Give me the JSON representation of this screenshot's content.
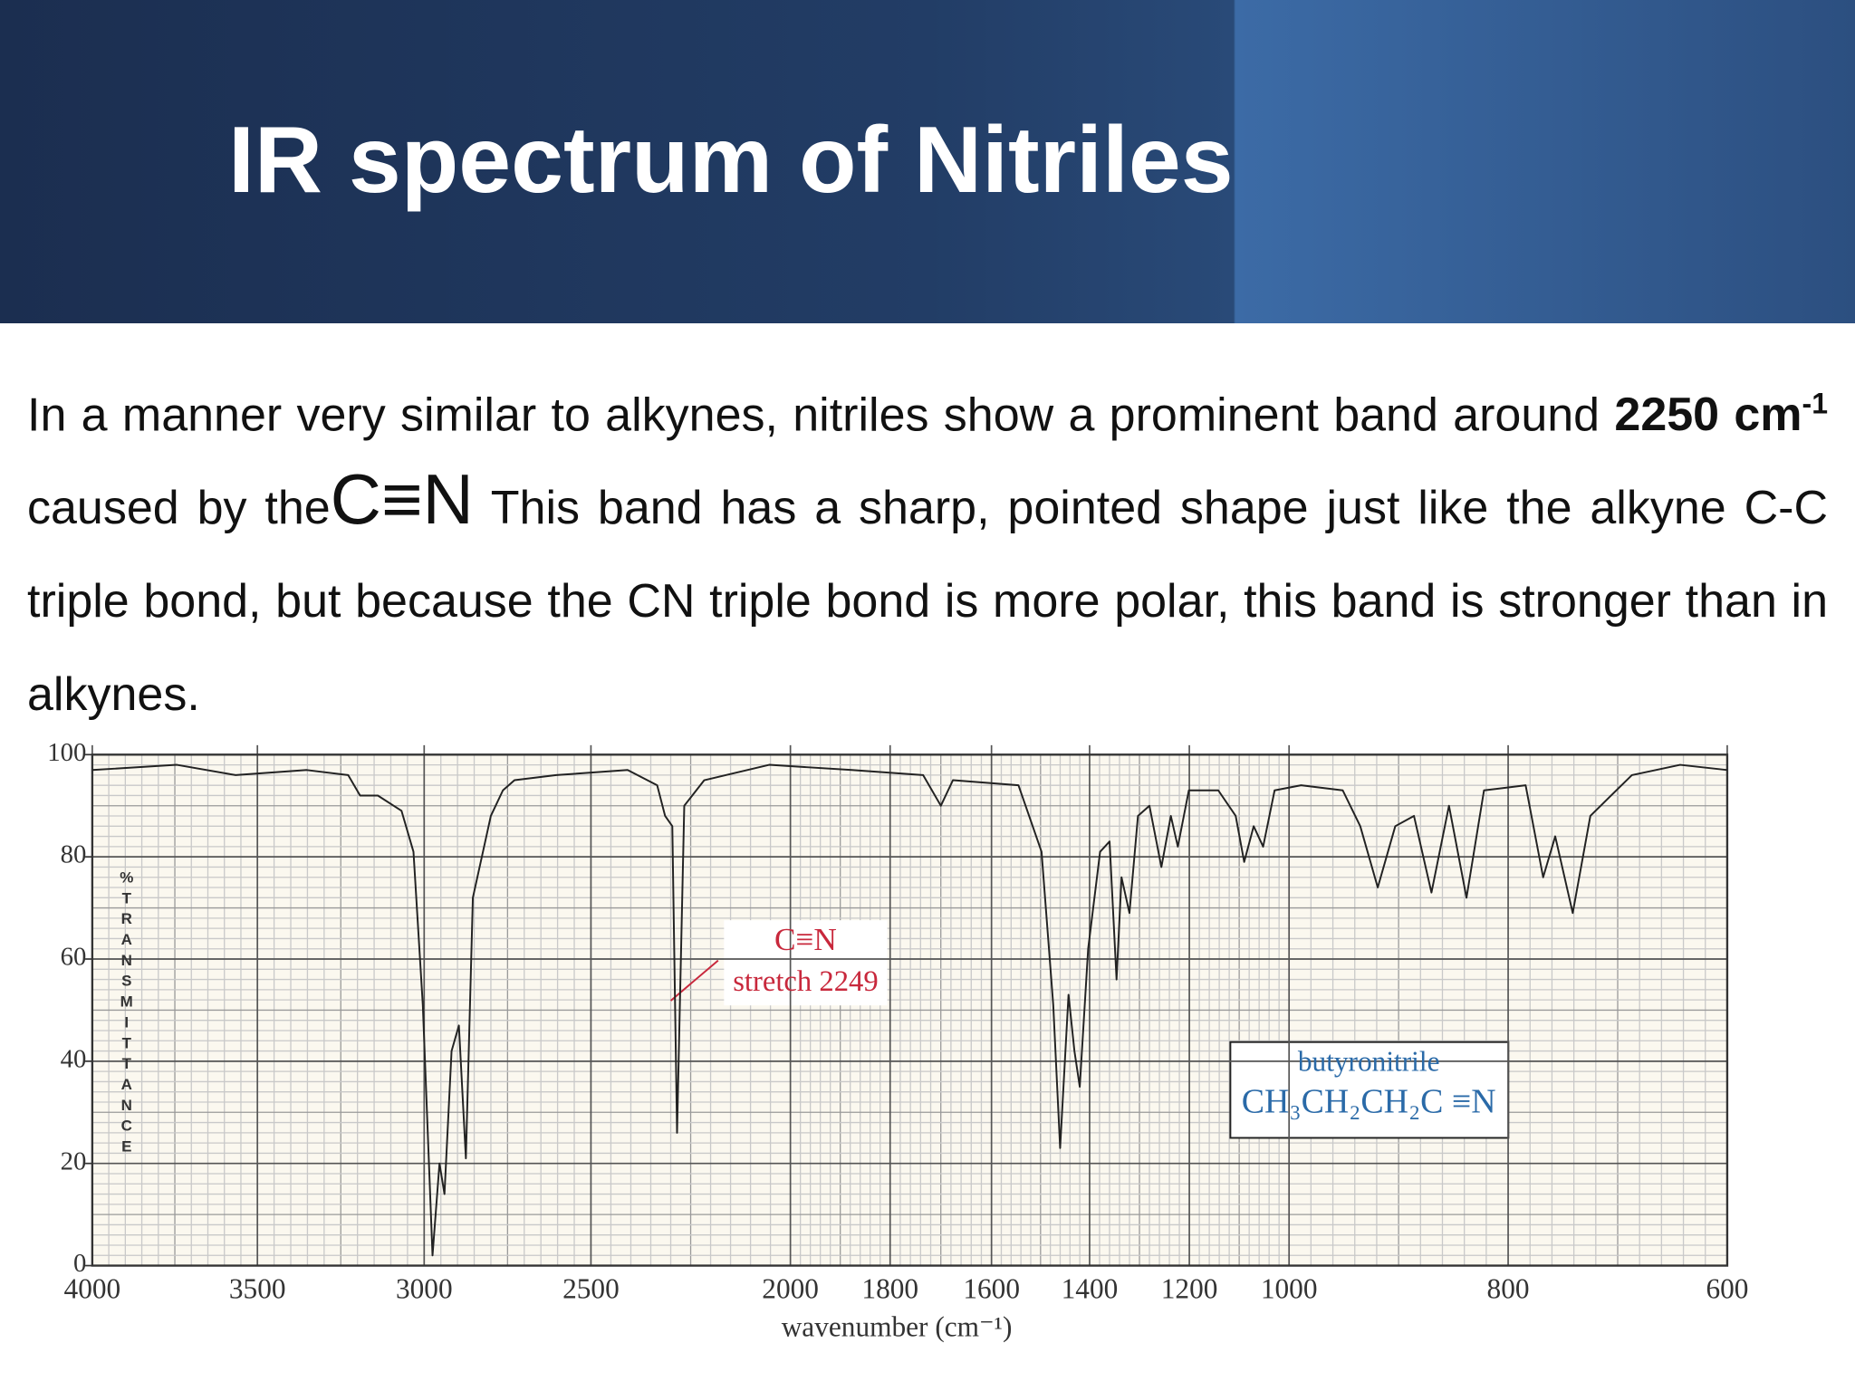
{
  "header": {
    "title": "IR spectrum of Nitriles"
  },
  "body": {
    "text_start": "In a manner very similar to alkynes, nitriles show a prominent band around",
    "bold": "2250 cm",
    "bold_sup": "-1",
    "text_mid": "caused by the",
    "bond": "C≡N",
    "text_end": "This band has a sharp, pointed shape just like the alkyne C-C triple bond, but because the CN triple bond is more polar, this band is stronger than in alkynes."
  },
  "chart_data": {
    "type": "line",
    "xlabel": "wavenumber (cm⁻¹)",
    "ylabel": "%TRANSMITTANCE",
    "annotations": [
      "C≡N",
      "stretch 2249"
    ],
    "legend_box": [
      "butyronitrile",
      "CH₃CH₂CH₂C ≡N"
    ],
    "xlim": [
      4000,
      600
    ],
    "xticks": [
      4000,
      3500,
      3000,
      2500,
      2000,
      1800,
      1600,
      1400,
      1200,
      1000,
      800,
      600
    ],
    "ylim": [
      0,
      100
    ],
    "yticks": [
      0,
      20,
      40,
      60,
      80,
      100
    ],
    "grid": true,
    "color": "#222222",
    "x": [
      4000,
      3744,
      3566,
      3352,
      3228,
      3192,
      3139,
      3068,
      3032,
      3004,
      2975,
      2954,
      2939,
      2918,
      2896,
      2875,
      2854,
      2800,
      2764,
      2729,
      2604,
      2408,
      2334,
      2314,
      2296,
      2284,
      2266,
      2216,
      2053,
      1877,
      1735,
      1700,
      1676,
      1545,
      1498,
      1474,
      1460,
      1443,
      1431,
      1420,
      1403,
      1379,
      1360,
      1346,
      1336,
      1320,
      1303,
      1280,
      1256,
      1237,
      1223,
      1201,
      1142,
      1107,
      1090,
      1071,
      1052,
      1029,
      989,
      951,
      935,
      919,
      903,
      886,
      870,
      854,
      838,
      822,
      784,
      768,
      757,
      741,
      725,
      687,
      643,
      600
    ],
    "values": [
      97,
      98,
      96,
      97,
      96,
      92,
      92,
      89,
      81,
      51,
      2,
      20,
      14,
      42,
      47,
      21,
      72,
      88,
      93,
      95,
      96,
      97,
      94,
      88,
      86,
      26,
      90,
      95,
      98,
      97,
      96,
      90,
      95,
      94,
      81,
      51,
      23,
      53,
      42,
      35,
      62,
      81,
      83,
      56,
      76,
      69,
      88,
      90,
      78,
      88,
      82,
      93,
      93,
      88,
      79,
      86,
      82,
      93,
      94,
      93,
      86,
      74,
      86,
      88,
      73,
      90,
      72,
      93,
      94,
      76,
      84,
      69,
      88,
      96,
      98,
      97
    ]
  }
}
